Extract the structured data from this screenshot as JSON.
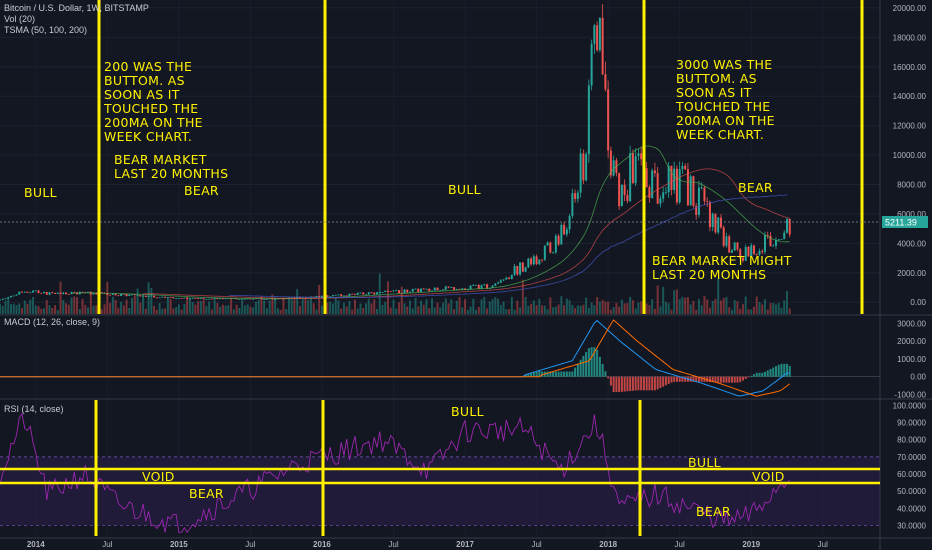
{
  "header": {
    "title": "Bitcoin / U.S. Dollar, 1W, BITSTAMP",
    "vol": "Vol (20)",
    "tsma": "TSMA (50, 100, 200)"
  },
  "price_badge": "5211.39",
  "macd_title": "MACD (12, 26, close, 9)",
  "rsi_title": "RSI (14, close)",
  "annotations": {
    "a1": "200 WAS THE\nBUTTOM. AS\nSOON AS IT\nTOUCHED THE\n200MA ON THE\nWEEK CHART.",
    "a2": "BEAR MARKET\nLAST 20 MONTHS",
    "a3": "3000 WAS THE\nBUTTOM. AS\nSOON AS IT\nTOUCHED THE\n200MA ON THE\nWEEK CHART.",
    "a4": "BEAR MARKET MIGHT\nLAST 20 MONTHS",
    "bull1": "BULL",
    "bear1": "BEAR",
    "bull2": "BULL",
    "bear2": "BEAR",
    "rsi_bull_top": "BULL",
    "rsi_void1": "VOID",
    "rsi_bear1": "BEAR",
    "rsi_bull2": "BULL",
    "rsi_void2": "VOID",
    "rsi_bear2": "BEAR"
  },
  "colors": {
    "background": "#131722",
    "up": "#26a69a",
    "down": "#ef5350",
    "annotation": "#fff200",
    "macd": "#2196f3",
    "signal": "#ff6d00",
    "rsi": "#9c27b0"
  },
  "chart_data": [
    {
      "type": "candlestick",
      "title": "Bitcoin / U.S. Dollar, 1W, BITSTAMP",
      "x_ticks": [
        "2014",
        "Jul",
        "2015",
        "Jul",
        "2016",
        "Jul",
        "2017",
        "Jul",
        "2018",
        "Jul",
        "2019",
        "Jul"
      ],
      "y_ticks": [
        "20000.00",
        "18000.00",
        "16000.00",
        "14000.00",
        "12000.00",
        "10000.00",
        "8000.00",
        "6000.00",
        "4000.00",
        "2000.00",
        "0.00"
      ],
      "ylim": [
        -800,
        20400
      ],
      "last_price": 5211.39,
      "approx_close_series": [
        {
          "x": "2013-10",
          "y": 150
        },
        {
          "x": "2013-12",
          "y": 800
        },
        {
          "x": "2014-02",
          "y": 600
        },
        {
          "x": "2014-06",
          "y": 600
        },
        {
          "x": "2014-12",
          "y": 320
        },
        {
          "x": "2015-03",
          "y": 250
        },
        {
          "x": "2015-09",
          "y": 230
        },
        {
          "x": "2016-01",
          "y": 400
        },
        {
          "x": "2016-06",
          "y": 650
        },
        {
          "x": "2016-12",
          "y": 950
        },
        {
          "x": "2017-03",
          "y": 1100
        },
        {
          "x": "2017-06",
          "y": 2500
        },
        {
          "x": "2017-09",
          "y": 4300
        },
        {
          "x": "2017-11",
          "y": 9500
        },
        {
          "x": "2017-12",
          "y": 19000
        },
        {
          "x": "2018-01",
          "y": 11000
        },
        {
          "x": "2018-02",
          "y": 7000
        },
        {
          "x": "2018-03",
          "y": 9000
        },
        {
          "x": "2018-05",
          "y": 8000
        },
        {
          "x": "2018-07",
          "y": 8200
        },
        {
          "x": "2018-09",
          "y": 6600
        },
        {
          "x": "2018-11",
          "y": 4000
        },
        {
          "x": "2018-12",
          "y": 3300
        },
        {
          "x": "2019-02",
          "y": 3900
        },
        {
          "x": "2019-04",
          "y": 5211
        }
      ]
    },
    {
      "type": "line",
      "title": "MACD (12, 26, close, 9)",
      "y_ticks": [
        "3000.00",
        "2000.00",
        "1000.00",
        "0.00",
        "-1000.00"
      ],
      "ylim": [
        -1200,
        3300
      ],
      "approx_macd": [
        {
          "x": "2017-06",
          "y": 100
        },
        {
          "x": "2017-10",
          "y": 900
        },
        {
          "x": "2017-12",
          "y": 3200
        },
        {
          "x": "2018-02",
          "y": 2000
        },
        {
          "x": "2018-05",
          "y": 400
        },
        {
          "x": "2018-09",
          "y": -400
        },
        {
          "x": "2018-12",
          "y": -1100
        },
        {
          "x": "2019-02",
          "y": -800
        },
        {
          "x": "2019-04",
          "y": 200
        }
      ]
    },
    {
      "type": "line",
      "title": "RSI (14, close)",
      "y_ticks": [
        "100.0000",
        "90.0000",
        "80.0000",
        "70.0000",
        "60.0000",
        "50.0000",
        "40.0000",
        "30.0000"
      ],
      "ylim": [
        25,
        102
      ],
      "bands": [
        30,
        70
      ],
      "approx_rsi": [
        {
          "x": "2013-10",
          "y": 60
        },
        {
          "x": "2013-12",
          "y": 93
        },
        {
          "x": "2014-02",
          "y": 48
        },
        {
          "x": "2014-05",
          "y": 60
        },
        {
          "x": "2014-08",
          "y": 42
        },
        {
          "x": "2015-01",
          "y": 30
        },
        {
          "x": "2015-05",
          "y": 44
        },
        {
          "x": "2015-11",
          "y": 66
        },
        {
          "x": "2016-06",
          "y": 80
        },
        {
          "x": "2016-10",
          "y": 62
        },
        {
          "x": "2017-01",
          "y": 85
        },
        {
          "x": "2017-06",
          "y": 86
        },
        {
          "x": "2017-09",
          "y": 62
        },
        {
          "x": "2017-12",
          "y": 90
        },
        {
          "x": "2018-02",
          "y": 40
        },
        {
          "x": "2018-05",
          "y": 48
        },
        {
          "x": "2018-11",
          "y": 32
        },
        {
          "x": "2019-01",
          "y": 36
        },
        {
          "x": "2019-04",
          "y": 58
        }
      ]
    }
  ]
}
